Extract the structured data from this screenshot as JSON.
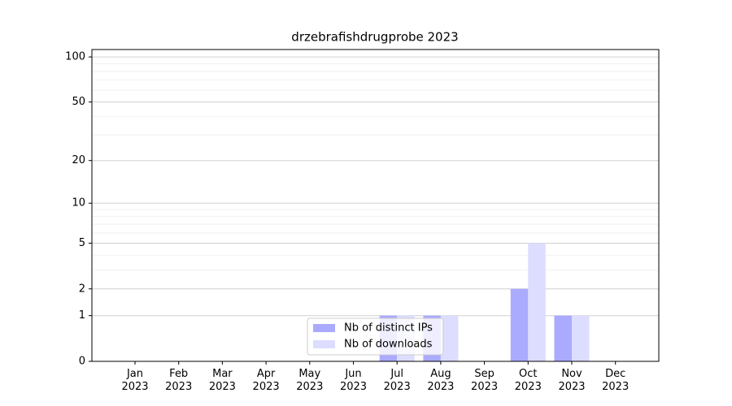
{
  "chart_data": {
    "type": "bar",
    "title": "drzebrafishdrugprobe 2023",
    "categories": [
      "Jan 2023",
      "Feb 2023",
      "Mar 2023",
      "Apr 2023",
      "May 2023",
      "Jun 2023",
      "Jul 2023",
      "Aug 2023",
      "Sep 2023",
      "Oct 2023",
      "Nov 2023",
      "Dec 2023"
    ],
    "series": [
      {
        "name": "Nb of distinct IPs",
        "color": "#aaaaff",
        "values": [
          0,
          0,
          0,
          0,
          0,
          0,
          1,
          1,
          0,
          2,
          1,
          0
        ]
      },
      {
        "name": "Nb of downloads",
        "color": "#ddddff",
        "values": [
          0,
          0,
          0,
          0,
          0,
          0,
          1,
          1,
          0,
          5,
          1,
          0
        ]
      }
    ],
    "yscale": "log1p",
    "ylim": [
      0,
      112
    ],
    "yticks": [
      0,
      1,
      2,
      5,
      10,
      20,
      50,
      100
    ],
    "minor_yticks": [
      3,
      4,
      6,
      7,
      8,
      9,
      30,
      40,
      60,
      70,
      80,
      90
    ],
    "grid": true,
    "legend": "lower center"
  }
}
